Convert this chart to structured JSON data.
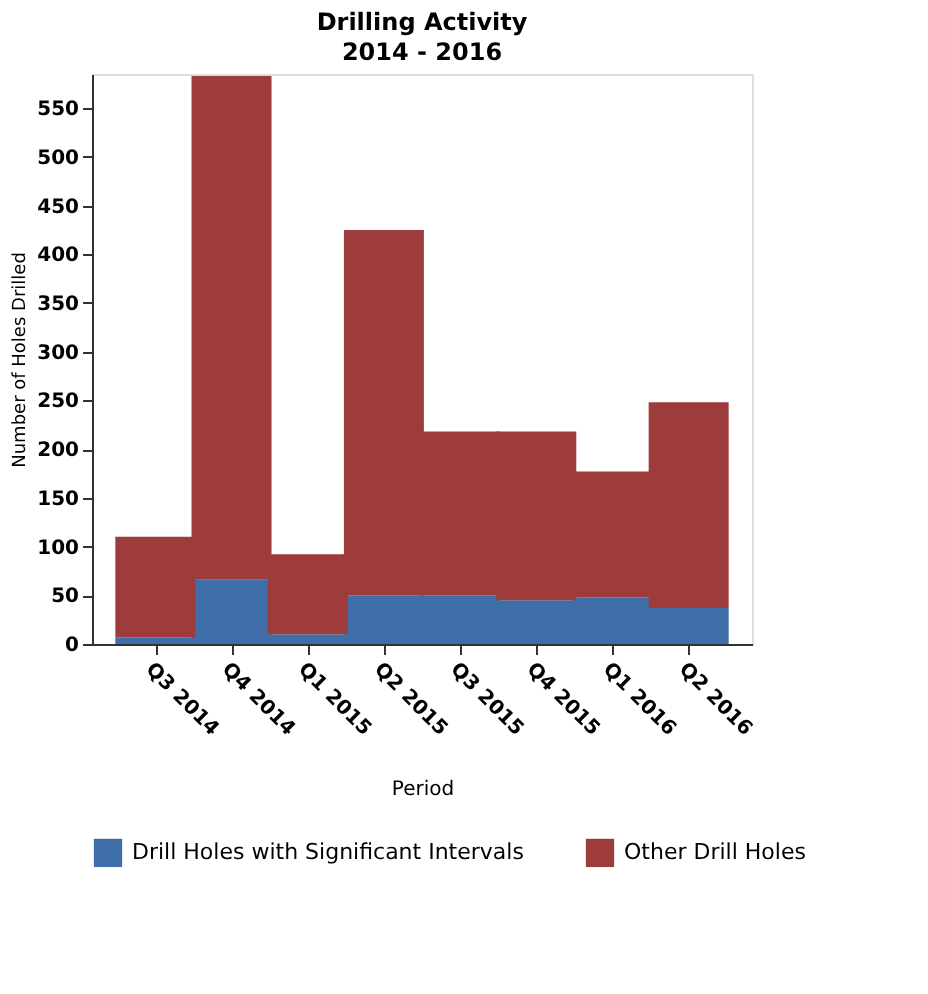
{
  "chart_data": {
    "type": "bar",
    "title": "Drilling Activity",
    "subtitle": "2014 - 2016",
    "xlabel": "Period",
    "ylabel": "Number of Holes Drilled",
    "categories": [
      "Q3 2014",
      "Q4 2014",
      "Q1 2015",
      "Q2 2015",
      "Q3 2015",
      "Q4 2015",
      "Q1 2016",
      "Q2 2016"
    ],
    "stacked": true,
    "series": [
      {
        "name": "Drill Holes with Significant Intervals",
        "color": "#3f6ea8",
        "values": [
          7,
          66,
          10,
          50,
          50,
          45,
          48,
          37
        ]
      },
      {
        "name": "Other Drill Holes",
        "color": "#9e3b3b",
        "values": [
          103,
          517,
          82,
          375,
          168,
          173,
          129,
          211
        ]
      }
    ],
    "ylim": [
      0,
      585
    ],
    "yticks": [
      0,
      50,
      100,
      150,
      200,
      250,
      300,
      350,
      400,
      450,
      500,
      550
    ],
    "grid": false,
    "legend": "bottom"
  }
}
